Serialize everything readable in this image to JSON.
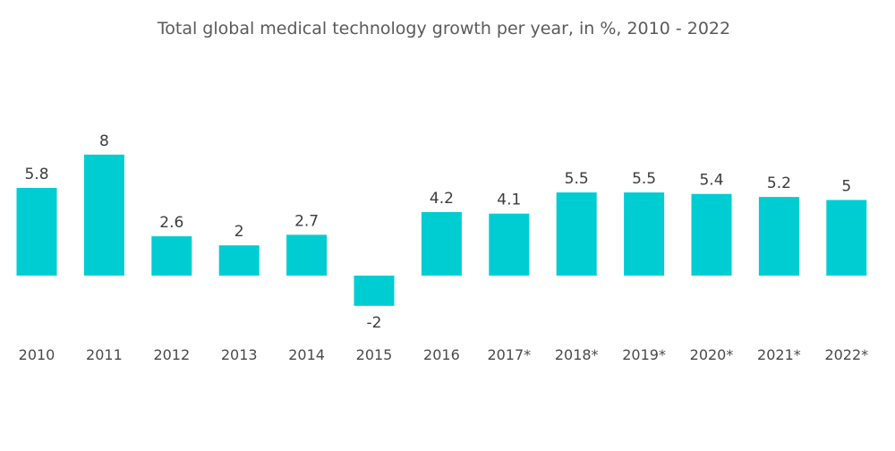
{
  "chart_data": {
    "type": "bar",
    "title": "Total global medical technology growth per year, in %,  2010 - 2022",
    "xlabel": "",
    "ylabel": "",
    "categories": [
      "2010",
      "2011",
      "2012",
      "2013",
      "2014",
      "2015",
      "2016",
      "2017*",
      "2018*",
      "2019*",
      "2020*",
      "2021*",
      "2022*"
    ],
    "values": [
      5.8,
      8,
      2.6,
      2,
      2.7,
      -2,
      4.2,
      4.1,
      5.5,
      5.5,
      5.4,
      5.2,
      5
    ],
    "data_labels": [
      "5.8",
      "8",
      "2.6",
      "2",
      "2.7",
      "-2",
      "4.2",
      "4.1",
      "5.5",
      "5.5",
      "5.4",
      "5.2",
      "5"
    ],
    "ylim": [
      -2,
      8
    ],
    "grid": false,
    "legend": "none",
    "colors": {
      "bar": "#00cdd2",
      "text": "#3c3c3c",
      "title": "#5a5a5a"
    }
  }
}
